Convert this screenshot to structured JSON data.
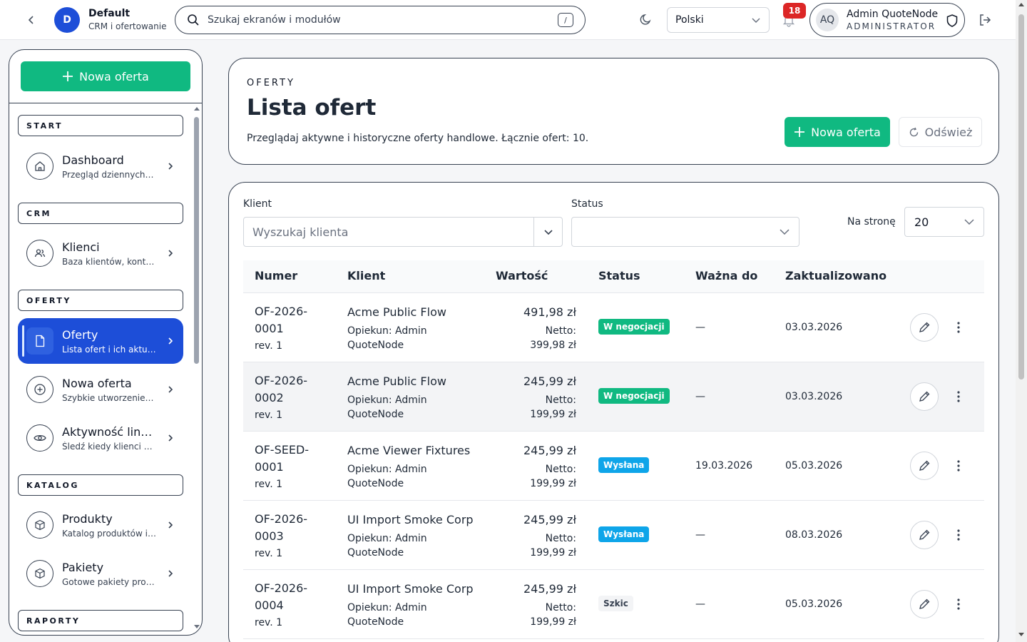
{
  "topbar": {
    "workspace_initial": "D",
    "workspace_name": "Default",
    "workspace_sub": "CRM i ofertowanie",
    "search_placeholder": "Szukaj ekranów i modułów",
    "search_shortcut": "/",
    "language": "Polski",
    "notifications_count": "18",
    "user_initials": "AQ",
    "user_name": "Admin QuoteNode",
    "user_role": "ADMINISTRATOR"
  },
  "sidebar": {
    "new_offer_label": "Nowa oferta",
    "sections": [
      "START",
      "CRM",
      "OFERTY",
      "KATALOG",
      "RAPORTY"
    ],
    "items": [
      {
        "label": "Dashboard",
        "sub": "Przegląd dziennych wskaźników",
        "icon": "home-icon"
      },
      {
        "label": "Klienci",
        "sub": "Baza klientów, kontaktów",
        "icon": "users-icon"
      },
      {
        "label": "Oferty",
        "sub": "Lista ofert i ich aktualizacje",
        "icon": "document-icon",
        "active": true
      },
      {
        "label": "Nowa oferta",
        "sub": "Szybkie utworzenie oferty",
        "icon": "plus-circle-icon"
      },
      {
        "label": "Aktywność linków",
        "sub": "Śledź kiedy klienci otwierają",
        "icon": "eye-icon"
      },
      {
        "label": "Produkty",
        "sub": "Katalog produktów i usług",
        "icon": "box-icon"
      },
      {
        "label": "Pakiety",
        "sub": "Gotowe pakiety produktów",
        "icon": "box-icon"
      }
    ]
  },
  "header": {
    "eyebrow": "OFERTY",
    "title": "Lista ofert",
    "description": "Przeglądaj aktywne i historyczne oferty handlowe. Łącznie ofert: 10.",
    "new_offer_label": "Nowa oferta",
    "refresh_label": "Odśwież"
  },
  "filters": {
    "client_label": "Klient",
    "client_placeholder": "Wyszukaj klienta",
    "status_label": "Status",
    "status_value": "",
    "per_page_label": "Na stronę",
    "per_page_value": "20"
  },
  "table": {
    "columns": [
      "Numer",
      "Klient",
      "Wartość",
      "Status",
      "Ważna do",
      "Zaktualizowano"
    ],
    "rows": [
      {
        "num_a": "OF-2026-",
        "num_b": "0001",
        "rev": "rev. 1",
        "client": "Acme Public Flow",
        "owner_a": "Opiekun: Admin",
        "owner_b": "QuoteNode",
        "gross": "491,98 zł",
        "net_a": "Netto:",
        "net_b": "399,98 zł",
        "status": "W negocjacji",
        "status_color": "#10b981",
        "valid_to": "—",
        "updated": "03.03.2026"
      },
      {
        "num_a": "OF-2026-",
        "num_b": "0002",
        "rev": "rev. 1",
        "client": "Acme Public Flow",
        "owner_a": "Opiekun: Admin",
        "owner_b": "QuoteNode",
        "gross": "245,99 zł",
        "net_a": "Netto:",
        "net_b": "199,99 zł",
        "status": "W negocjacji",
        "status_color": "#10b981",
        "valid_to": "—",
        "updated": "03.03.2026"
      },
      {
        "num_a": "OF-SEED-",
        "num_b": "0001",
        "rev": "rev. 1",
        "client": "Acme Viewer Fixtures",
        "owner_a": "Opiekun: Admin",
        "owner_b": "QuoteNode",
        "gross": "245,99 zł",
        "net_a": "Netto:",
        "net_b": "199,99 zł",
        "status": "Wysłana",
        "status_color": "#0ea5e9",
        "valid_to": "19.03.2026",
        "updated": "05.03.2026"
      },
      {
        "num_a": "OF-2026-",
        "num_b": "0003",
        "rev": "rev. 1",
        "client": "UI Import Smoke Corp",
        "owner_a": "Opiekun: Admin",
        "owner_b": "QuoteNode",
        "gross": "245,99 zł",
        "net_a": "Netto:",
        "net_b": "199,99 zł",
        "status": "Wysłana",
        "status_color": "#0ea5e9",
        "valid_to": "—",
        "updated": "08.03.2026"
      },
      {
        "num_a": "OF-2026-",
        "num_b": "0004",
        "rev": "rev. 1",
        "client": "UI Import Smoke Corp",
        "owner_a": "Opiekun: Admin",
        "owner_b": "QuoteNode",
        "gross": "245,99 zł",
        "net_a": "Netto:",
        "net_b": "199,99 zł",
        "status": "Szkic",
        "status_color": "#f3f4f6",
        "valid_to": "—",
        "updated": "05.03.2026"
      }
    ]
  },
  "colors": {
    "accent_green": "#10b981",
    "active_nav": "#1d4ed8",
    "badge_red": "#dc2626",
    "badge_blue": "#0ea5e9"
  }
}
